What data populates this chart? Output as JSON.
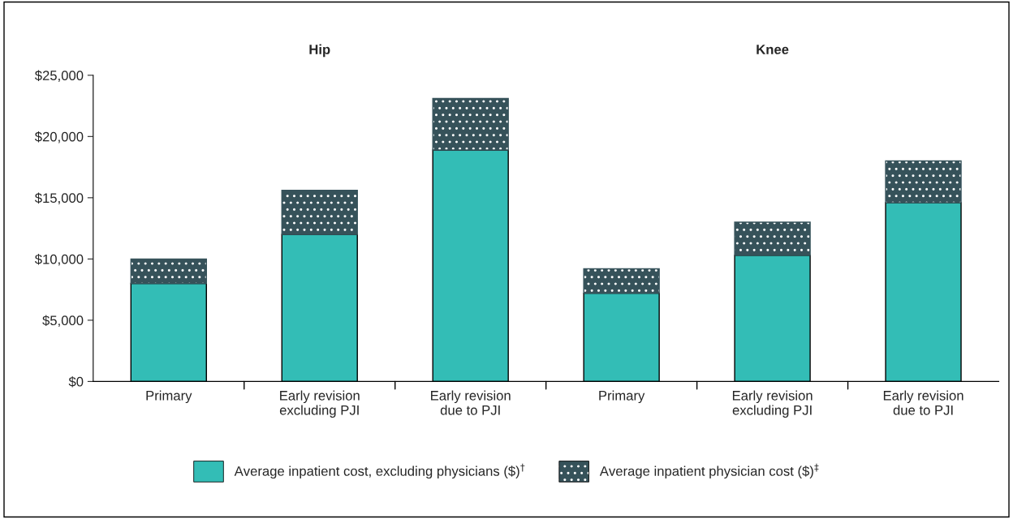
{
  "chart_data": {
    "type": "bar",
    "stacked": true,
    "categories": [
      "Primary",
      "Early revision\nexcluding PJI",
      "Early revision\ndue to PJI",
      "Primary",
      "Early revision\nexcluding PJI",
      "Early revision\ndue to PJI"
    ],
    "series": [
      {
        "name": "Average inpatient cost, excluding physicians ($)$^{†}$",
        "color": "#33bdb6",
        "values": [
          8000,
          12000,
          18900,
          7200,
          10300,
          14600
        ]
      },
      {
        "name": "Average inpatient physician cost ($)$^{‡}$",
        "color": "#36525a",
        "values": [
          2000,
          3600,
          4200,
          2000,
          2700,
          3400
        ]
      }
    ],
    "ylim": [
      0,
      25000
    ],
    "yticks": [
      {
        "value": 0,
        "label": "$0"
      },
      {
        "value": 5000,
        "label": "$5,000"
      },
      {
        "value": 10000,
        "label": "$10,000"
      },
      {
        "value": 15000,
        "label": "$15,000"
      },
      {
        "value": 20000,
        "label": "$20,000"
      },
      {
        "value": 25000,
        "label": "$25,000"
      }
    ],
    "annotations": [
      "Hip",
      "Knee"
    ],
    "grid": false,
    "legend": "bottom"
  }
}
